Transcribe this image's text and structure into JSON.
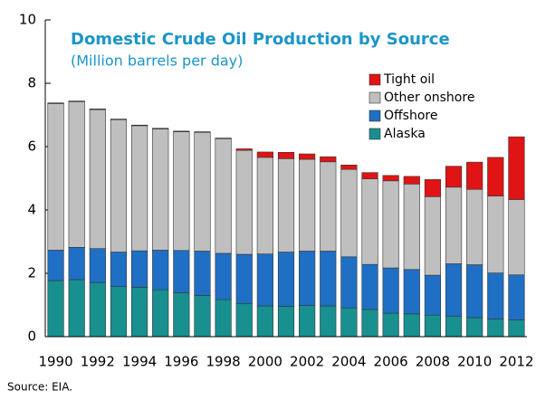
{
  "chart_data": {
    "type": "stacked_bar",
    "title": "Domestic Crude Oil Production by Source",
    "subtitle": "(Million barrels per day)",
    "source": "Source: EIA.",
    "categories": [
      "1990",
      null,
      "1992",
      null,
      "1994",
      null,
      "1996",
      null,
      "1998",
      null,
      "2000",
      null,
      "2002",
      null,
      "2004",
      null,
      "2006",
      null,
      "2008",
      null,
      "2010",
      null,
      "2012"
    ],
    "series": [
      {
        "name": "Alaska",
        "color": "#17908f",
        "values": [
          1.77,
          1.8,
          1.71,
          1.58,
          1.56,
          1.48,
          1.39,
          1.3,
          1.17,
          1.05,
          0.97,
          0.96,
          0.98,
          0.97,
          0.91,
          0.86,
          0.74,
          0.72,
          0.68,
          0.65,
          0.6,
          0.56,
          0.53
        ]
      },
      {
        "name": "Offshore",
        "color": "#1f6fc5",
        "values": [
          0.96,
          1.02,
          1.07,
          1.09,
          1.15,
          1.25,
          1.33,
          1.4,
          1.46,
          1.55,
          1.64,
          1.71,
          1.72,
          1.73,
          1.61,
          1.42,
          1.43,
          1.4,
          1.26,
          1.65,
          1.67,
          1.45,
          1.42
        ]
      },
      {
        "name": "Other onshore",
        "color": "#bfbfbf",
        "values": [
          4.63,
          4.6,
          4.39,
          4.18,
          3.95,
          3.83,
          3.75,
          3.75,
          3.62,
          3.28,
          3.05,
          2.95,
          2.9,
          2.82,
          2.76,
          2.7,
          2.75,
          2.7,
          2.48,
          2.42,
          2.38,
          2.43,
          2.38
        ]
      },
      {
        "name": "Tight oil",
        "color": "#e01414",
        "values": [
          0.02,
          0.02,
          0.02,
          0.02,
          0.02,
          0.02,
          0.02,
          0.02,
          0.02,
          0.05,
          0.17,
          0.2,
          0.17,
          0.16,
          0.14,
          0.2,
          0.17,
          0.24,
          0.54,
          0.66,
          0.86,
          1.22,
          1.98
        ]
      }
    ],
    "ylim": [
      0,
      10
    ],
    "yticks": [
      0,
      2,
      4,
      6,
      8,
      10
    ]
  }
}
